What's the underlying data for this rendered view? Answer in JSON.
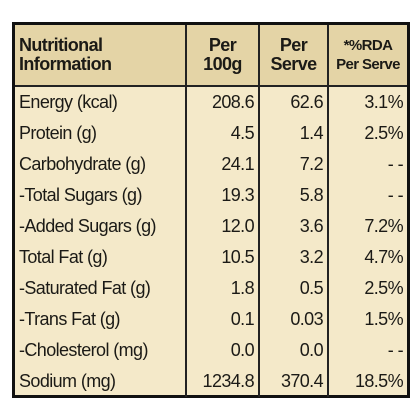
{
  "table": {
    "header": [
      [
        "Nutritional",
        "Information"
      ],
      [
        "Per",
        "100g"
      ],
      [
        "Per",
        "Serve"
      ],
      [
        "*%RDA",
        "Per Serve"
      ]
    ],
    "rows": [
      [
        "Energy (kcal)",
        "208.6",
        "62.6",
        "3.1%"
      ],
      [
        "Protein (g)",
        "4.5",
        "1.4",
        "2.5%"
      ],
      [
        "Carbohydrate (g)",
        "24.1",
        "7.2",
        "- -"
      ],
      [
        "-Total Sugars (g)",
        "19.3",
        "5.8",
        "- -"
      ],
      [
        "-Added Sugars (g)",
        "12.0",
        "3.6",
        "7.2%"
      ],
      [
        "Total Fat (g)",
        "10.5",
        "3.2",
        "4.7%"
      ],
      [
        "-Saturated Fat (g)",
        "1.8",
        "0.5",
        "2.5%"
      ],
      [
        "-Trans Fat (g)",
        "0.1",
        "0.03",
        "1.5%"
      ],
      [
        "-Cholesterol (mg)",
        "0.0",
        "0.0",
        "- -"
      ],
      [
        "Sodium (mg)",
        "1234.8",
        "370.4",
        "18.5%"
      ]
    ]
  }
}
